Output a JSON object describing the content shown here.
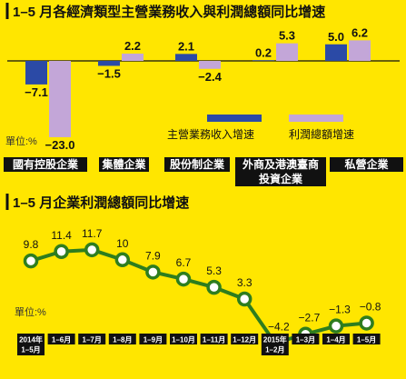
{
  "chart_data": [
    {
      "type": "bar",
      "title": "1–5 月各經濟類型主營業務收入與利潤總額同比增速",
      "unit": "單位:%",
      "categories": [
        "國有控股企業",
        "集體企業",
        "股份制企業",
        "外商及港澳臺商投資企業",
        "私營企業"
      ],
      "category_lines": [
        [
          "國有控股企業"
        ],
        [
          "集體企業"
        ],
        [
          "股份制企業"
        ],
        [
          "外商及港澳臺商",
          "投資企業"
        ],
        [
          "私營企業"
        ]
      ],
      "series": [
        {
          "name": "主營業務收入增速",
          "color": "#2b4aa6",
          "values": [
            -7.1,
            -1.5,
            2.1,
            0.2,
            5.0
          ]
        },
        {
          "name": "利潤總額增速",
          "color": "#c3a6d8",
          "values": [
            -23.0,
            2.2,
            -2.4,
            5.3,
            6.2
          ]
        }
      ],
      "value_labels": [
        [
          "−7.1",
          "−1.5",
          "2.1",
          "0.2",
          "5.0"
        ],
        [
          "−23.0",
          "2.2",
          "−2.4",
          "5.3",
          "6.2"
        ]
      ],
      "legend": "bottom-right",
      "grid": false
    },
    {
      "type": "line",
      "title": "1–5 月企業利潤總額同比增速",
      "unit": "單位:%",
      "color": "#2e7d1e",
      "categories": [
        "2014年1–5月",
        "1–6月",
        "1–7月",
        "1–8月",
        "1–9月",
        "1–10月",
        "1–11月",
        "1–12月",
        "2015年1–2月",
        "1–3月",
        "1–4月",
        "1–5月"
      ],
      "category_lines": [
        [
          "2014年",
          "1–5月"
        ],
        [
          "1–6月"
        ],
        [
          "1–7月"
        ],
        [
          "1–8月"
        ],
        [
          "1–9月"
        ],
        [
          "1–10月"
        ],
        [
          "1–11月"
        ],
        [
          "1–12月"
        ],
        [
          "2015年",
          "1–2月"
        ],
        [
          "1–3月"
        ],
        [
          "1–4月"
        ],
        [
          "1–5月"
        ]
      ],
      "values": [
        9.8,
        11.4,
        11.7,
        10.0,
        7.9,
        6.7,
        5.3,
        3.3,
        -4.2,
        -2.7,
        -1.3,
        -0.8
      ],
      "value_labels": [
        "9.8",
        "11.4",
        "11.7",
        "10",
        "7.9",
        "6.7",
        "5.3",
        "3.3",
        "−4.2",
        "−2.7",
        "−1.3",
        "−0.8"
      ],
      "grid": false
    }
  ]
}
